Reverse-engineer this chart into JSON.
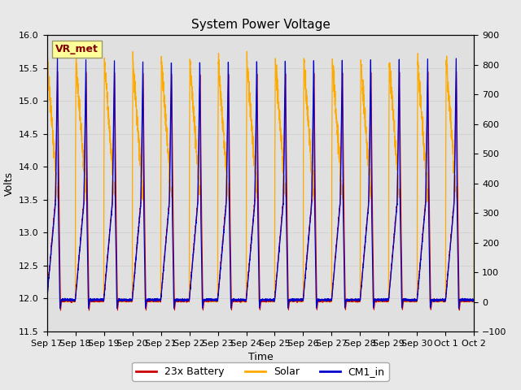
{
  "title": "System Power Voltage",
  "ylabel_left": "Volts",
  "xlabel": "Time",
  "ylim_left": [
    11.5,
    16.0
  ],
  "ylim_right": [
    -100,
    900
  ],
  "yticks_left": [
    11.5,
    12.0,
    12.5,
    13.0,
    13.5,
    14.0,
    14.5,
    15.0,
    15.5,
    16.0
  ],
  "yticks_right": [
    -100,
    0,
    100,
    200,
    300,
    400,
    500,
    600,
    700,
    800,
    900
  ],
  "xtick_labels": [
    "Sep 17",
    "Sep 18",
    "Sep 19",
    "Sep 20",
    "Sep 21",
    "Sep 22",
    "Sep 23",
    "Sep 24",
    "Sep 25",
    "Sep 26",
    "Sep 27",
    "Sep 28",
    "Sep 29",
    "Sep 30",
    "Oct 1",
    "Oct 2"
  ],
  "legend_labels": [
    "23x Battery",
    "Solar",
    "CM1_in"
  ],
  "legend_colors": [
    "#cc0000",
    "#ffaa00",
    "#0000cc"
  ],
  "annotation_text": "VR_met",
  "annotation_box_color": "#ffff99",
  "annotation_text_color": "#800000",
  "annotation_border_color": "#999966",
  "grid_color": "#d0d0d0",
  "fig_bg_color": "#e8e8e8",
  "plot_bg_color": "#e0e0e0",
  "title_fontsize": 11,
  "axis_label_fontsize": 9,
  "tick_fontsize": 8,
  "legend_fontsize": 9,
  "num_cycles": 15,
  "n_points": 4500
}
